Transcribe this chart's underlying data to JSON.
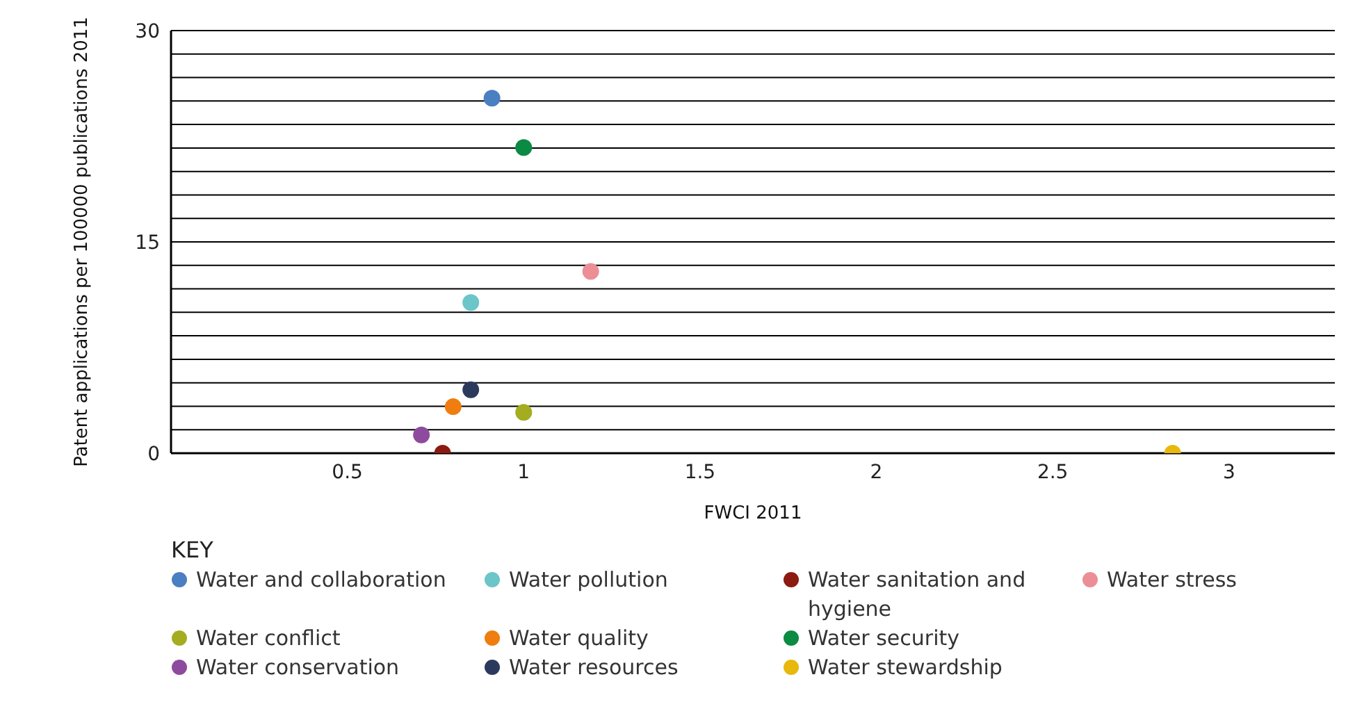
{
  "chart_data": {
    "type": "scatter",
    "xlabel": "FWCI 2011",
    "ylabel": "Patent applications per 100000 publications 2011",
    "legend_title": "KEY",
    "legend": "bottom",
    "grid": "y",
    "marker": "circle",
    "xlim": [
      0,
      3.3
    ],
    "xticks": [
      0.5,
      1,
      1.5,
      2,
      2.5,
      3
    ],
    "ylim": [
      0,
      30
    ],
    "yticks": [
      0,
      {
        "value": 1.667,
        "label": null
      },
      {
        "value": 3.333,
        "label": null
      },
      {
        "value": 5,
        "label": null
      },
      {
        "value": 6.667,
        "label": null
      },
      {
        "value": 8.333,
        "label": null
      },
      {
        "value": 10,
        "label": null
      },
      {
        "value": 11.667,
        "label": null
      },
      {
        "value": 13.333,
        "label": null
      },
      15,
      {
        "value": 16.667,
        "label": null
      },
      {
        "value": 18.333,
        "label": null
      },
      {
        "value": 20,
        "label": null
      },
      {
        "value": 21.667,
        "label": null
      },
      {
        "value": 23.333,
        "label": null
      },
      {
        "value": 25,
        "label": null
      },
      {
        "value": 26.667,
        "label": null
      },
      {
        "value": 28.333,
        "label": null
      },
      30
    ],
    "series": [
      {
        "name": "Water and collaboration",
        "color": "#4a7fc1",
        "x": [
          0.91
        ],
        "values": [
          25.2
        ]
      },
      {
        "name": "Water conflict",
        "color": "#a3ad1f",
        "x": [
          1.0
        ],
        "values": [
          2.9
        ]
      },
      {
        "name": "Water conservation",
        "color": "#8e4b9e",
        "x": [
          0.71
        ],
        "values": [
          1.3
        ]
      },
      {
        "name": "Water pollution",
        "color": "#6cc5c8",
        "x": [
          0.85
        ],
        "values": [
          10.7
        ]
      },
      {
        "name": "Water quality",
        "color": "#ef7d0f",
        "x": [
          0.8
        ],
        "values": [
          3.3
        ]
      },
      {
        "name": "Water resources",
        "color": "#2b3a5c",
        "x": [
          0.85
        ],
        "values": [
          4.5
        ]
      },
      {
        "name": "Water sanitation and hygiene",
        "color": "#8c1a10",
        "x": [
          0.77
        ],
        "values": [
          0
        ]
      },
      {
        "name": "Water security",
        "color": "#0b8a43",
        "x": [
          1.0
        ],
        "values": [
          21.7
        ]
      },
      {
        "name": "Water stewardship",
        "color": "#e8b80c",
        "x": [
          2.84
        ],
        "values": [
          0
        ]
      },
      {
        "name": "Water stress",
        "color": "#ec8e95",
        "x": [
          1.19
        ],
        "values": [
          12.9
        ]
      }
    ]
  }
}
